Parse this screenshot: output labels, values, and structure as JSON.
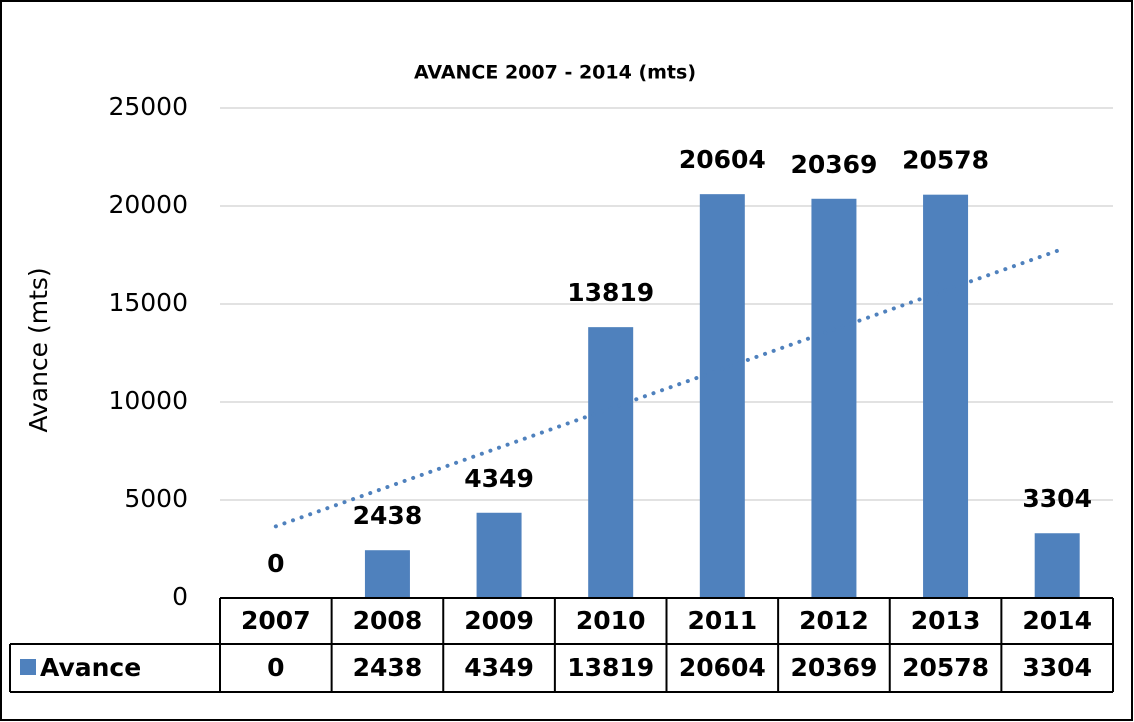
{
  "chart_data": {
    "type": "bar",
    "title": "AVANCE 2007 - 2014 (mts)",
    "y_label": "Avance (mts)",
    "categories": [
      "2007",
      "2008",
      "2009",
      "2010",
      "2011",
      "2012",
      "2013",
      "2014"
    ],
    "series": [
      {
        "name": "Avance",
        "color": "#4f81bd",
        "values": [
          0,
          2438,
          4349,
          13819,
          20604,
          20369,
          20578,
          3304
        ]
      }
    ],
    "ylim": [
      0,
      25000
    ],
    "yticks": [
      0,
      5000,
      10000,
      15000,
      20000,
      25000
    ],
    "grid": true,
    "trendline": "linear",
    "data_table": true,
    "data_labels": true
  }
}
